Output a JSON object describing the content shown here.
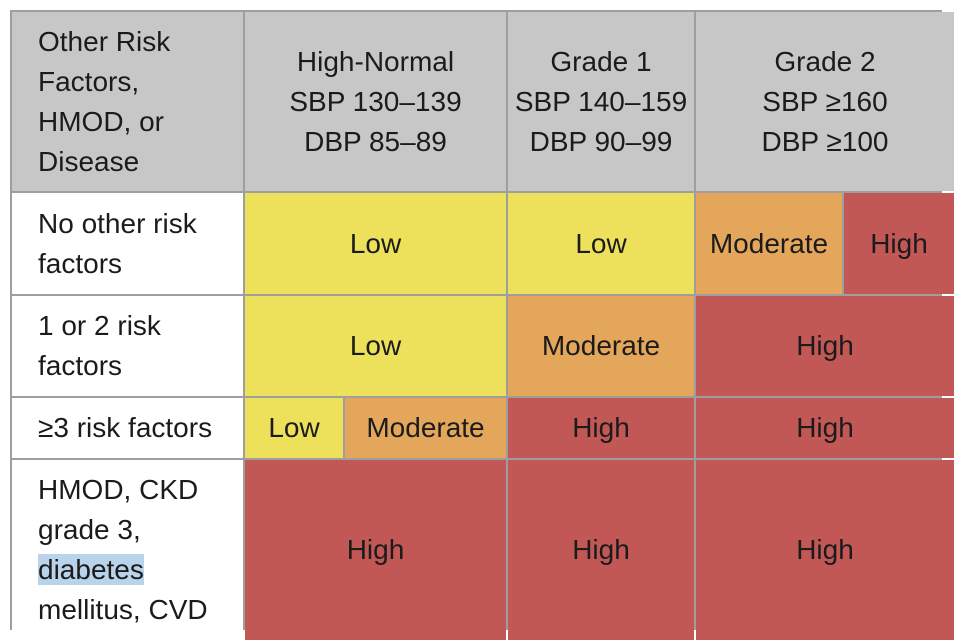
{
  "header": {
    "col0": [
      "Other Risk",
      "Factors,",
      "HMOD, or",
      "Disease"
    ],
    "col1": [
      "High-Normal",
      "SBP 130–139",
      "DBP 85–89"
    ],
    "col2": [
      "Grade 1",
      "SBP 140–159",
      "DBP 90–99"
    ],
    "col3": [
      "Grade 2",
      "SBP ≥160",
      "DBP ≥100"
    ]
  },
  "rows": [
    {
      "label": [
        "No other risk",
        "factors"
      ]
    },
    {
      "label": [
        "1 or 2 risk",
        "factors"
      ]
    },
    {
      "label": [
        "≥3 risk factors"
      ]
    },
    {
      "label_before": "HMOD, CKD",
      "label_mid": "grade 3,",
      "label_hl": "diabetes",
      "label_after": "mellitus, CVD"
    }
  ],
  "levels": {
    "low": "Low",
    "moderate": "Moderate",
    "high": "High"
  },
  "colors": {
    "low": "#ede05a",
    "moderate": "#e3a65a",
    "high": "#c25856",
    "header": "#c7c7c7"
  }
}
